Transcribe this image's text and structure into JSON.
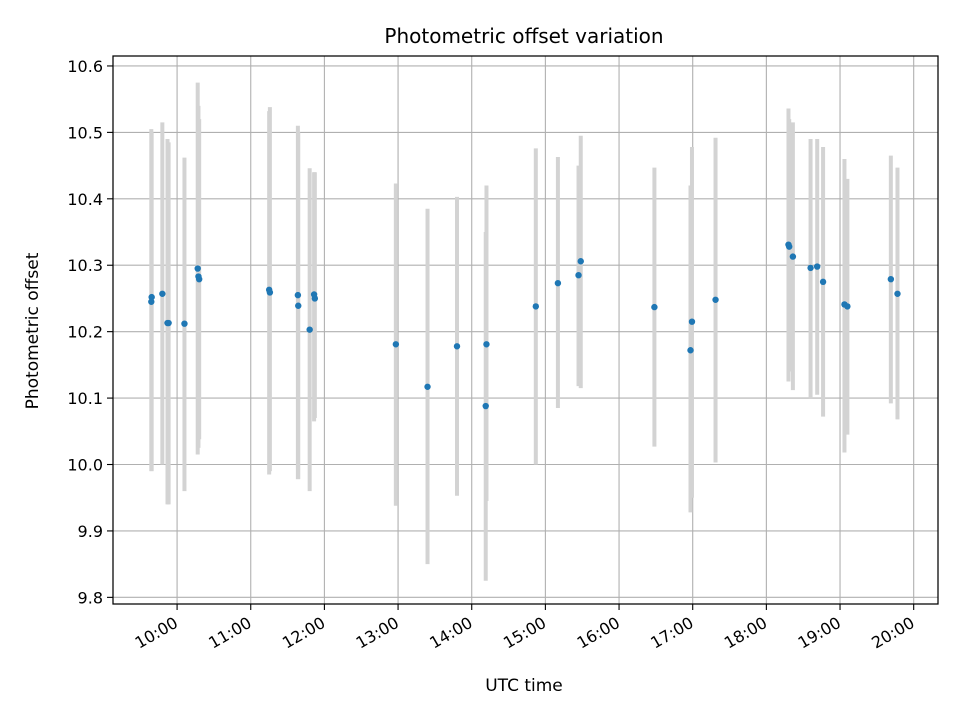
{
  "chart_data": {
    "type": "scatter",
    "title": "Photometric offset variation",
    "xlabel": "UTC time",
    "ylabel": "Photometric offset",
    "x_unit": "hours UTC",
    "xlim": [
      9.13,
      20.33
    ],
    "ylim": [
      9.79,
      10.615
    ],
    "x_ticks": [
      {
        "value": 10,
        "label": "10:00"
      },
      {
        "value": 11,
        "label": "11:00"
      },
      {
        "value": 12,
        "label": "12:00"
      },
      {
        "value": 13,
        "label": "13:00"
      },
      {
        "value": 14,
        "label": "14:00"
      },
      {
        "value": 15,
        "label": "15:00"
      },
      {
        "value": 16,
        "label": "16:00"
      },
      {
        "value": 17,
        "label": "17:00"
      },
      {
        "value": 18,
        "label": "18:00"
      },
      {
        "value": 19,
        "label": "19:00"
      },
      {
        "value": 20,
        "label": "20:00"
      }
    ],
    "y_ticks": [
      {
        "value": 9.8,
        "label": "9.8"
      },
      {
        "value": 9.9,
        "label": "9.9"
      },
      {
        "value": 10.0,
        "label": "10.0"
      },
      {
        "value": 10.1,
        "label": "10.1"
      },
      {
        "value": 10.2,
        "label": "10.2"
      },
      {
        "value": 10.3,
        "label": "10.3"
      },
      {
        "value": 10.4,
        "label": "10.4"
      },
      {
        "value": 10.5,
        "label": "10.5"
      },
      {
        "value": 10.6,
        "label": "10.6"
      }
    ],
    "grid": true,
    "marker_color": "#1f77b4",
    "errorbar_color": "#d3d3d3",
    "points": [
      {
        "x": 9.65,
        "y": 10.245,
        "ylow": 9.99,
        "yhigh": 10.505
      },
      {
        "x": 9.655,
        "y": 10.252,
        "ylow": 9.99,
        "yhigh": 10.5
      },
      {
        "x": 9.8,
        "y": 10.257,
        "ylow": 10.0,
        "yhigh": 10.515
      },
      {
        "x": 9.87,
        "y": 10.213,
        "ylow": 9.94,
        "yhigh": 10.49
      },
      {
        "x": 9.885,
        "y": 10.213,
        "ylow": 9.94,
        "yhigh": 10.485
      },
      {
        "x": 10.1,
        "y": 10.212,
        "ylow": 9.96,
        "yhigh": 10.462
      },
      {
        "x": 10.28,
        "y": 10.295,
        "ylow": 10.015,
        "yhigh": 10.575
      },
      {
        "x": 10.29,
        "y": 10.283,
        "ylow": 10.025,
        "yhigh": 10.54
      },
      {
        "x": 10.3,
        "y": 10.279,
        "ylow": 10.038,
        "yhigh": 10.52
      },
      {
        "x": 11.25,
        "y": 10.263,
        "ylow": 9.985,
        "yhigh": 10.532
      },
      {
        "x": 11.26,
        "y": 10.259,
        "ylow": 9.99,
        "yhigh": 10.538
      },
      {
        "x": 11.64,
        "y": 10.255,
        "ylow": 9.978,
        "yhigh": 10.51
      },
      {
        "x": 11.645,
        "y": 10.239,
        "ylow": 9.978,
        "yhigh": 10.5
      },
      {
        "x": 11.8,
        "y": 10.203,
        "ylow": 9.96,
        "yhigh": 10.446
      },
      {
        "x": 11.86,
        "y": 10.256,
        "ylow": 10.065,
        "yhigh": 10.44
      },
      {
        "x": 11.87,
        "y": 10.25,
        "ylow": 10.07,
        "yhigh": 10.44
      },
      {
        "x": 12.97,
        "y": 10.181,
        "ylow": 9.938,
        "yhigh": 10.423
      },
      {
        "x": 13.4,
        "y": 10.117,
        "ylow": 9.85,
        "yhigh": 10.385
      },
      {
        "x": 13.8,
        "y": 10.178,
        "ylow": 9.953,
        "yhigh": 10.403
      },
      {
        "x": 14.19,
        "y": 10.088,
        "ylow": 9.825,
        "yhigh": 10.35
      },
      {
        "x": 14.2,
        "y": 10.181,
        "ylow": 9.945,
        "yhigh": 10.42
      },
      {
        "x": 14.87,
        "y": 10.238,
        "ylow": 10.0,
        "yhigh": 10.476
      },
      {
        "x": 15.17,
        "y": 10.273,
        "ylow": 10.085,
        "yhigh": 10.463
      },
      {
        "x": 15.45,
        "y": 10.285,
        "ylow": 10.118,
        "yhigh": 10.45
      },
      {
        "x": 15.48,
        "y": 10.306,
        "ylow": 10.115,
        "yhigh": 10.495
      },
      {
        "x": 16.48,
        "y": 10.237,
        "ylow": 10.027,
        "yhigh": 10.447
      },
      {
        "x": 16.97,
        "y": 10.172,
        "ylow": 9.928,
        "yhigh": 10.42
      },
      {
        "x": 16.99,
        "y": 10.215,
        "ylow": 9.95,
        "yhigh": 10.478
      },
      {
        "x": 17.31,
        "y": 10.248,
        "ylow": 10.003,
        "yhigh": 10.492
      },
      {
        "x": 18.3,
        "y": 10.331,
        "ylow": 10.125,
        "yhigh": 10.536
      },
      {
        "x": 18.31,
        "y": 10.328,
        "ylow": 10.14,
        "yhigh": 10.52
      },
      {
        "x": 18.36,
        "y": 10.313,
        "ylow": 10.112,
        "yhigh": 10.515
      },
      {
        "x": 18.6,
        "y": 10.296,
        "ylow": 10.1,
        "yhigh": 10.49
      },
      {
        "x": 18.69,
        "y": 10.298,
        "ylow": 10.105,
        "yhigh": 10.49
      },
      {
        "x": 18.77,
        "y": 10.275,
        "ylow": 10.072,
        "yhigh": 10.478
      },
      {
        "x": 19.06,
        "y": 10.241,
        "ylow": 10.018,
        "yhigh": 10.46
      },
      {
        "x": 19.1,
        "y": 10.238,
        "ylow": 10.045,
        "yhigh": 10.43
      },
      {
        "x": 19.69,
        "y": 10.279,
        "ylow": 10.092,
        "yhigh": 10.465
      },
      {
        "x": 19.78,
        "y": 10.257,
        "ylow": 10.068,
        "yhigh": 10.447
      }
    ]
  }
}
